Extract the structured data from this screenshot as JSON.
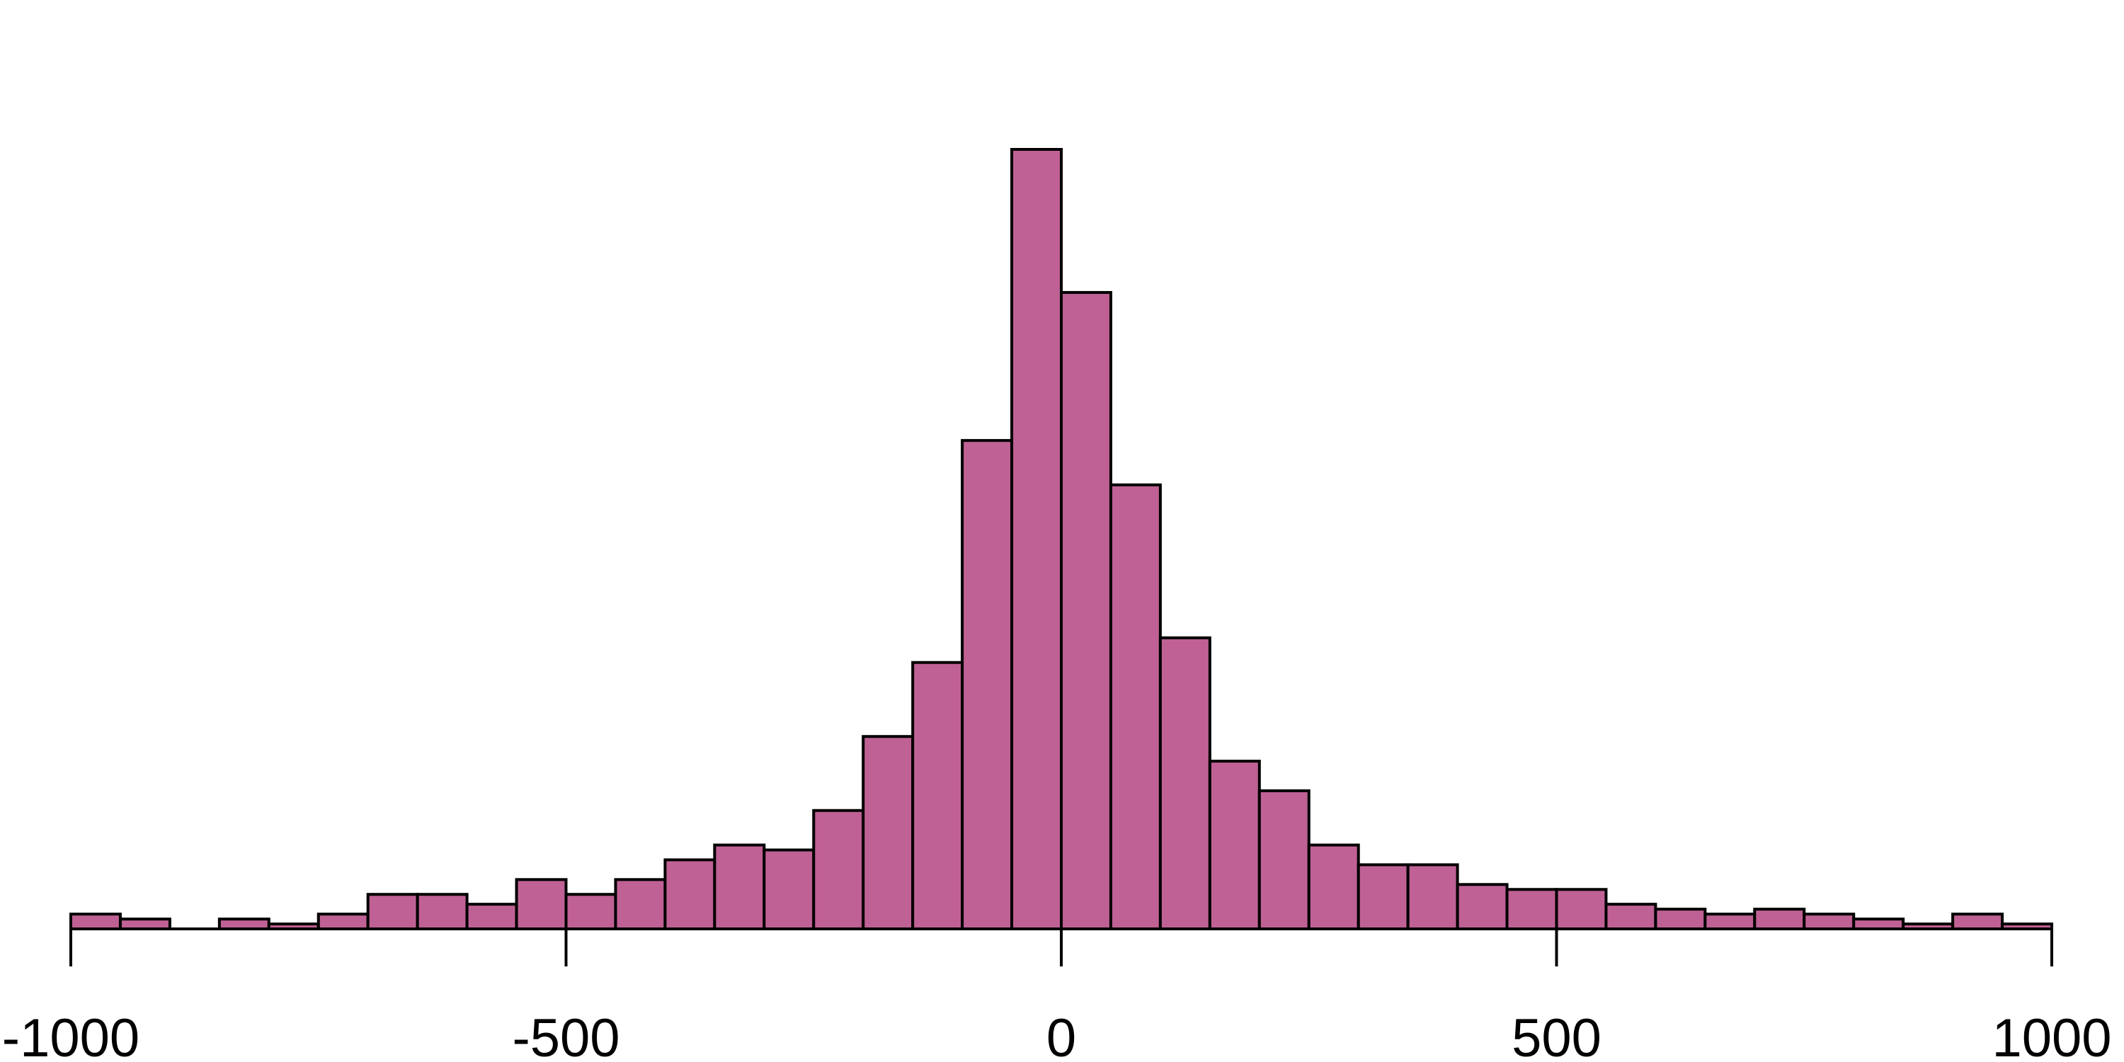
{
  "chart_data": {
    "type": "histogram",
    "bins": [
      -1000,
      -950,
      -900,
      -850,
      -800,
      -750,
      -700,
      -650,
      -600,
      -550,
      -500,
      -450,
      -400,
      -350,
      -300,
      -250,
      -200,
      -150,
      -100,
      -50,
      0,
      50,
      100,
      150,
      200,
      250,
      300,
      350,
      400,
      450,
      500,
      550,
      600,
      650,
      700,
      750,
      800,
      850,
      900,
      950,
      1000
    ],
    "values": [
      3,
      2,
      0,
      2,
      1,
      3,
      7,
      7,
      5,
      10,
      7,
      10,
      14,
      17,
      16,
      24,
      39,
      54,
      99,
      158,
      129,
      90,
      59,
      34,
      28,
      17,
      13,
      13,
      9,
      8,
      8,
      5,
      4,
      3,
      4,
      3,
      2,
      1,
      3,
      1
    ],
    "color": "#bf6194",
    "xlim": [
      -1000,
      1000
    ],
    "xticks": [
      -1000,
      -500,
      0,
      500,
      1000
    ]
  }
}
